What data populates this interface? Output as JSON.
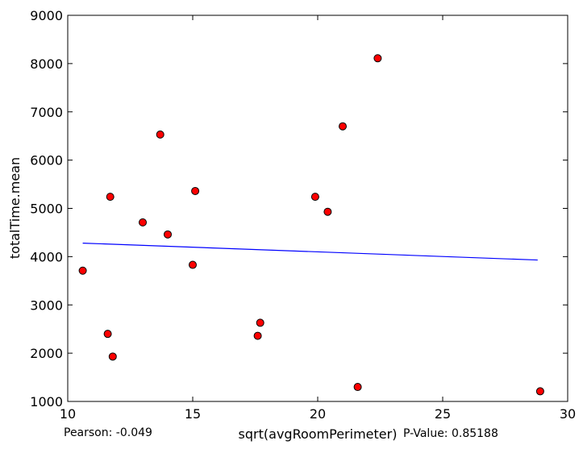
{
  "chart_data": {
    "type": "scatter",
    "xlabel": "sqrt(avgRoomPerimeter)",
    "ylabel": "totalTime.mean",
    "xlim": [
      10,
      30
    ],
    "ylim": [
      1000,
      9000
    ],
    "x_ticks": [
      10,
      15,
      20,
      25,
      30
    ],
    "y_ticks": [
      1000,
      2000,
      3000,
      4000,
      5000,
      6000,
      7000,
      8000,
      9000
    ],
    "x_tick_labels": [
      "10",
      "15",
      "20",
      "25",
      "30"
    ],
    "y_tick_labels": [
      "1000",
      "2000",
      "3000",
      "4000",
      "5000",
      "6000",
      "7000",
      "8000",
      "9000"
    ],
    "grid": false,
    "point_color": "#ff0000",
    "line_color": "#0000ff",
    "points": [
      {
        "x": 10.6,
        "y": 3710
      },
      {
        "x": 11.6,
        "y": 2400
      },
      {
        "x": 11.7,
        "y": 5240
      },
      {
        "x": 11.8,
        "y": 1930
      },
      {
        "x": 13.0,
        "y": 4710
      },
      {
        "x": 13.7,
        "y": 6530
      },
      {
        "x": 14.0,
        "y": 4460
      },
      {
        "x": 15.0,
        "y": 3830
      },
      {
        "x": 15.1,
        "y": 5360
      },
      {
        "x": 17.6,
        "y": 2360
      },
      {
        "x": 17.7,
        "y": 2630
      },
      {
        "x": 19.9,
        "y": 5240
      },
      {
        "x": 20.4,
        "y": 4930
      },
      {
        "x": 21.0,
        "y": 6700
      },
      {
        "x": 21.6,
        "y": 1300
      },
      {
        "x": 22.4,
        "y": 8110
      },
      {
        "x": 28.9,
        "y": 1210
      }
    ],
    "fit_line": [
      {
        "x": 10.6,
        "y": 4280
      },
      {
        "x": 28.8,
        "y": 3930
      }
    ],
    "pearson_text": "Pearson: -0.049",
    "pvalue_text": "P-Value: 0.85188"
  }
}
